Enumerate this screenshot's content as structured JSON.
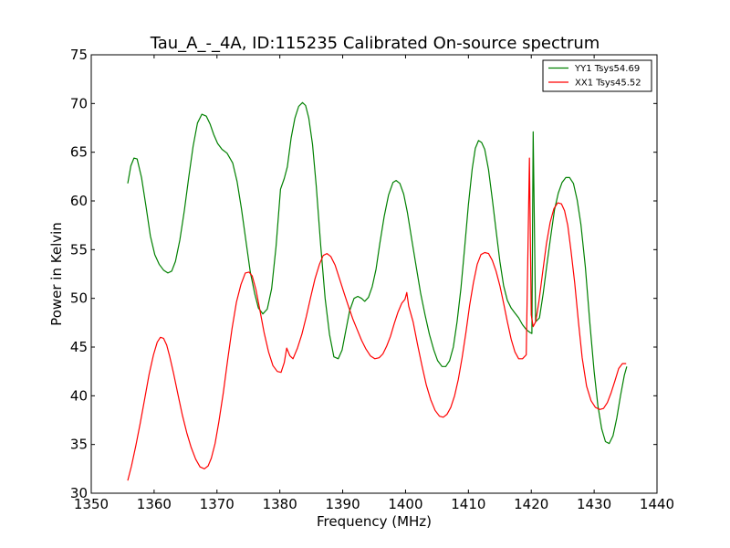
{
  "chart_data": {
    "type": "line",
    "title": "Tau_A_-_4A, ID:115235 Calibrated On-source spectrum",
    "xlabel": "Frequency (MHz)",
    "ylabel": "Power in Kelvin",
    "xlim": [
      1350,
      1440
    ],
    "ylim": [
      30,
      75
    ],
    "xticks": [
      1350,
      1360,
      1370,
      1380,
      1390,
      1400,
      1410,
      1420,
      1430,
      1440
    ],
    "yticks": [
      30,
      35,
      40,
      45,
      50,
      55,
      60,
      65,
      70,
      75
    ],
    "grid": false,
    "legend_position": "top-right",
    "series": [
      {
        "name": "YY1 Tsys54.69",
        "color": "#008000",
        "x": [
          1355.8,
          1356.3,
          1356.8,
          1357.3,
          1358.0,
          1358.7,
          1359.4,
          1360.1,
          1360.8,
          1361.5,
          1362.2,
          1362.8,
          1363.4,
          1364.1,
          1364.8,
          1365.5,
          1366.2,
          1366.9,
          1367.6,
          1368.3,
          1368.9,
          1369.5,
          1370.1,
          1370.8,
          1371.6,
          1372.5,
          1373.2,
          1373.9,
          1374.6,
          1375.3,
          1376.0,
          1376.6,
          1377.3,
          1378.0,
          1378.7,
          1379.4,
          1380.1,
          1380.7,
          1381.2,
          1381.8,
          1382.4,
          1383.0,
          1383.6,
          1384.1,
          1384.6,
          1385.2,
          1385.8,
          1386.5,
          1387.2,
          1387.9,
          1388.6,
          1389.3,
          1389.9,
          1390.5,
          1391.1,
          1391.8,
          1392.4,
          1393.0,
          1393.5,
          1394.1,
          1394.7,
          1395.3,
          1395.9,
          1396.6,
          1397.3,
          1398.0,
          1398.5,
          1399.1,
          1399.7,
          1400.3,
          1401.0,
          1401.7,
          1402.4,
          1403.1,
          1403.8,
          1404.5,
          1405.1,
          1405.8,
          1406.4,
          1407.0,
          1407.6,
          1408.2,
          1408.8,
          1409.4,
          1410.0,
          1410.6,
          1411.1,
          1411.6,
          1412.1,
          1412.6,
          1413.2,
          1413.8,
          1414.4,
          1415.0,
          1415.6,
          1416.2,
          1416.8,
          1417.4,
          1418.0,
          1418.6,
          1419.2,
          1419.8,
          1420.1,
          1420.3,
          1420.7,
          1421.3,
          1421.9,
          1422.5,
          1423.1,
          1423.7,
          1424.3,
          1424.9,
          1425.5,
          1426.1,
          1426.7,
          1427.3,
          1427.9,
          1428.6,
          1429.3,
          1430.0,
          1430.6,
          1431.2,
          1431.8,
          1432.4,
          1433.0,
          1433.6,
          1434.2,
          1434.8,
          1435.2
        ],
        "values": [
          61.8,
          63.6,
          64.4,
          64.3,
          62.4,
          59.5,
          56.4,
          54.5,
          53.5,
          52.9,
          52.6,
          52.8,
          53.8,
          56.0,
          59.0,
          62.4,
          65.6,
          68.0,
          68.9,
          68.7,
          67.9,
          66.8,
          65.9,
          65.3,
          64.9,
          63.9,
          62.0,
          59.2,
          55.9,
          52.7,
          50.5,
          49.0,
          48.4,
          48.9,
          51.0,
          55.3,
          61.2,
          62.3,
          63.5,
          66.5,
          68.5,
          69.7,
          70.1,
          69.8,
          68.5,
          65.8,
          61.5,
          55.5,
          50.0,
          46.3,
          44.0,
          43.8,
          44.7,
          46.7,
          48.7,
          50.0,
          50.2,
          50.0,
          49.7,
          50.1,
          51.2,
          53.0,
          55.6,
          58.4,
          60.6,
          61.9,
          62.1,
          61.8,
          60.7,
          58.8,
          56.0,
          53.2,
          50.5,
          48.3,
          46.3,
          44.7,
          43.6,
          43.0,
          43.0,
          43.6,
          45.0,
          47.6,
          51.0,
          55.2,
          59.6,
          63.3,
          65.4,
          66.2,
          66.0,
          65.3,
          63.2,
          60.2,
          57.0,
          53.8,
          51.3,
          49.8,
          49.0,
          48.5,
          48.0,
          47.3,
          46.8,
          46.5,
          46.4,
          67.1,
          47.6,
          48.0,
          50.5,
          53.5,
          56.4,
          59.1,
          60.8,
          61.9,
          62.4,
          62.4,
          61.8,
          60.1,
          57.6,
          53.2,
          47.6,
          42.5,
          39.0,
          36.6,
          35.3,
          35.1,
          35.9,
          37.7,
          40.0,
          42.1,
          43.0
        ]
      },
      {
        "name": "XX1 Tsys45.52",
        "color": "#ff0000",
        "x": [
          1355.8,
          1356.4,
          1357.1,
          1357.8,
          1358.5,
          1359.2,
          1359.9,
          1360.5,
          1361.0,
          1361.5,
          1362.0,
          1362.5,
          1363.1,
          1363.8,
          1364.5,
          1365.2,
          1365.9,
          1366.6,
          1367.3,
          1368.0,
          1368.6,
          1369.1,
          1369.7,
          1370.3,
          1371.0,
          1371.7,
          1372.4,
          1373.1,
          1373.8,
          1374.5,
          1375.1,
          1375.6,
          1376.2,
          1376.8,
          1377.5,
          1378.2,
          1378.9,
          1379.6,
          1380.2,
          1380.7,
          1381.1,
          1381.6,
          1382.1,
          1382.8,
          1383.5,
          1384.2,
          1384.9,
          1385.6,
          1386.3,
          1386.9,
          1387.5,
          1388.1,
          1388.8,
          1389.5,
          1390.2,
          1390.9,
          1391.6,
          1392.3,
          1393.0,
          1393.7,
          1394.4,
          1395.1,
          1395.8,
          1396.4,
          1397.0,
          1397.6,
          1398.2,
          1398.8,
          1399.4,
          1399.9,
          1400.2,
          1400.5,
          1401.2,
          1401.9,
          1402.6,
          1403.3,
          1404.0,
          1404.7,
          1405.4,
          1406.0,
          1406.6,
          1407.2,
          1407.8,
          1408.4,
          1409.0,
          1409.6,
          1410.2,
          1410.8,
          1411.4,
          1412.0,
          1412.6,
          1413.2,
          1413.8,
          1414.4,
          1415.0,
          1415.6,
          1416.2,
          1416.8,
          1417.4,
          1418.0,
          1418.6,
          1419.2,
          1419.7,
          1420.0,
          1420.3,
          1420.7,
          1421.2,
          1421.8,
          1422.4,
          1423.0,
          1423.6,
          1424.2,
          1424.8,
          1425.3,
          1425.8,
          1426.3,
          1426.9,
          1427.5,
          1428.1,
          1428.8,
          1429.5,
          1430.2,
          1430.9,
          1431.5,
          1432.1,
          1432.7,
          1433.3,
          1433.9,
          1434.5,
          1435.1
        ],
        "values": [
          31.3,
          32.8,
          34.9,
          37.2,
          39.7,
          42.2,
          44.2,
          45.5,
          46.0,
          45.9,
          45.2,
          44.0,
          42.3,
          40.1,
          38.0,
          36.2,
          34.7,
          33.5,
          32.7,
          32.5,
          32.8,
          33.6,
          35.1,
          37.3,
          40.3,
          43.7,
          46.9,
          49.6,
          51.4,
          52.6,
          52.7,
          52.3,
          50.9,
          48.9,
          46.5,
          44.5,
          43.1,
          42.5,
          42.4,
          43.4,
          44.9,
          44.1,
          43.8,
          44.9,
          46.3,
          48.1,
          50.1,
          52.0,
          53.5,
          54.4,
          54.6,
          54.3,
          53.4,
          52.0,
          50.6,
          49.2,
          47.9,
          46.8,
          45.7,
          44.8,
          44.1,
          43.8,
          43.9,
          44.3,
          45.1,
          46.1,
          47.4,
          48.6,
          49.5,
          49.9,
          50.6,
          49.2,
          47.6,
          45.3,
          43.1,
          41.1,
          39.6,
          38.5,
          37.9,
          37.8,
          38.1,
          38.8,
          40.0,
          41.7,
          43.9,
          46.5,
          49.3,
          51.6,
          53.5,
          54.5,
          54.7,
          54.6,
          53.9,
          52.8,
          51.3,
          49.5,
          47.6,
          45.8,
          44.5,
          43.8,
          43.8,
          44.2,
          64.4,
          48.3,
          47.1,
          47.6,
          49.6,
          52.6,
          55.6,
          57.8,
          59.2,
          59.8,
          59.7,
          59.0,
          57.5,
          55.0,
          51.6,
          47.6,
          43.9,
          41.0,
          39.5,
          38.8,
          38.6,
          38.7,
          39.3,
          40.3,
          41.5,
          42.8,
          43.3,
          43.3
        ]
      }
    ]
  }
}
